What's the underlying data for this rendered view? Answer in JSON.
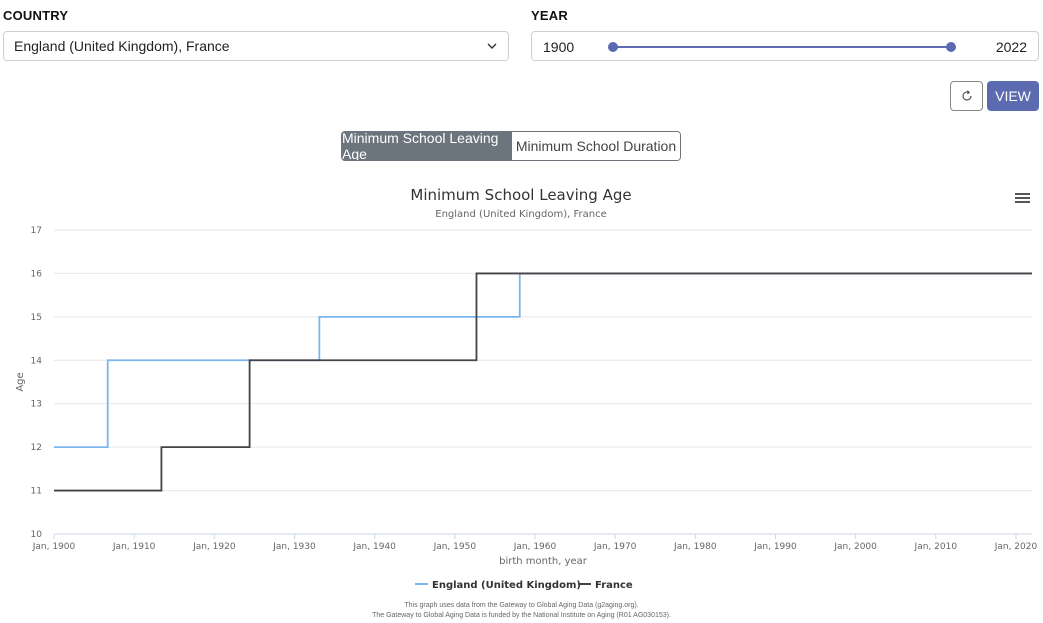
{
  "controls": {
    "country_label": "COUNTRY",
    "country_value": "England (United Kingdom), France",
    "year_label": "YEAR",
    "year_min": "1900",
    "year_max": "2022",
    "view_label": "VIEW"
  },
  "tabs": {
    "active": "Minimum School Leaving Age",
    "inactive": "Minimum School Duration"
  },
  "credits": {
    "line1": "This graph uses data from the Gateway to Global Aging Data (g2aging.org).",
    "line2": "The Gateway to Global Aging Data is funded by the National Institute on Aging (R01 AG030153)."
  },
  "colors": {
    "accent": "#5c6bb0",
    "england": "#7cb5ec",
    "france": "#434348"
  },
  "chart_data": {
    "type": "line",
    "step": true,
    "title": "Minimum School Leaving Age",
    "subtitle": "England (United Kingdom), France",
    "xlabel": "birth month, year",
    "ylabel": "Age",
    "xlim": [
      1900,
      2022
    ],
    "ylim": [
      10,
      17
    ],
    "xticks": [
      1900,
      1910,
      1920,
      1930,
      1940,
      1950,
      1960,
      1970,
      1980,
      1990,
      2000,
      2010,
      2020
    ],
    "xtick_labels": [
      "Jan, 1900",
      "Jan, 1910",
      "Jan, 1920",
      "Jan, 1930",
      "Jan, 1940",
      "Jan, 1950",
      "Jan, 1960",
      "Jan, 1970",
      "Jan, 1980",
      "Jan, 1990",
      "Jan, 2000",
      "Jan, 2010",
      "Jan, 2020"
    ],
    "yticks": [
      10,
      11,
      12,
      13,
      14,
      15,
      16,
      17
    ],
    "grid": true,
    "legend_position": "bottom-center",
    "series": [
      {
        "name": "England (United Kingdom)",
        "color": "#7cb5ec",
        "x": [
          1900,
          1906.7,
          1933.1,
          1958.1,
          2022
        ],
        "y": [
          12,
          14,
          15,
          16,
          16
        ]
      },
      {
        "name": "France",
        "color": "#434348",
        "x": [
          1900,
          1913.4,
          1924.4,
          1952.7,
          2022
        ],
        "y": [
          11,
          12,
          14,
          16,
          16
        ]
      }
    ]
  }
}
